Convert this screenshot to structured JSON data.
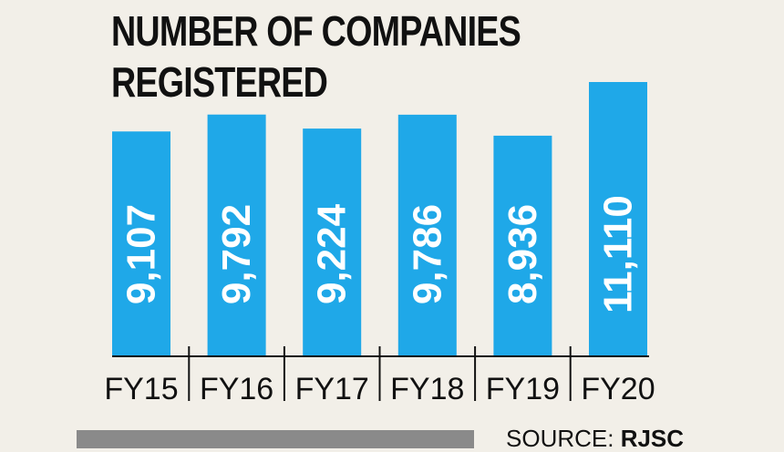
{
  "chart_data": {
    "type": "bar",
    "title_lines": [
      "NUMBER OF COMPANIES",
      "REGISTERED"
    ],
    "categories": [
      "FY15",
      "FY16",
      "FY17",
      "FY18",
      "FY19",
      "FY20"
    ],
    "values": [
      9107,
      9792,
      9224,
      9786,
      8936,
      11110
    ],
    "value_labels": [
      "9,107",
      "9,792",
      "9,224",
      "9,786",
      "8,936",
      "11,110"
    ],
    "bar_color": "#1fa8e8",
    "grid": false,
    "legend": "none"
  },
  "source": {
    "prefix": "SOURCE: ",
    "name": "RJSC"
  }
}
